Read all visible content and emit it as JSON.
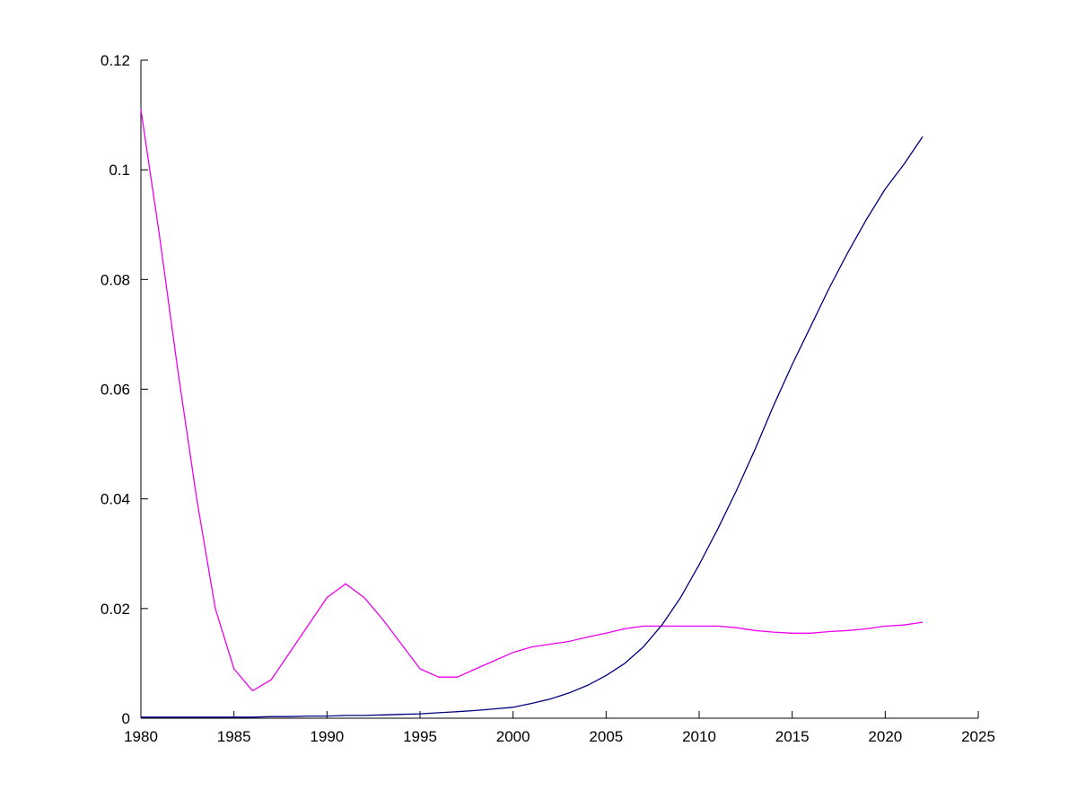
{
  "chart_data": {
    "type": "line",
    "title": "",
    "xlabel": "",
    "ylabel": "",
    "grid": false,
    "legend_position": "none",
    "background_color": "#ffffff",
    "axis_color": "#000000",
    "xlim": [
      1980,
      2025
    ],
    "ylim": [
      0,
      0.12
    ],
    "xticks": [
      1980,
      1985,
      1990,
      1995,
      2000,
      2005,
      2010,
      2015,
      2020,
      2025
    ],
    "xtick_labels": [
      "1980",
      "1985",
      "1990",
      "1995",
      "2000",
      "2005",
      "2010",
      "2015",
      "2020",
      "2025"
    ],
    "yticks": [
      0,
      0.02,
      0.04,
      0.06,
      0.08,
      0.1,
      0.12
    ],
    "ytick_labels": [
      "0",
      "0.02",
      "0.04",
      "0.06",
      "0.08",
      "0.1",
      "0.12"
    ],
    "x": [
      1980,
      1981,
      1982,
      1983,
      1984,
      1985,
      1986,
      1987,
      1988,
      1989,
      1990,
      1991,
      1992,
      1993,
      1994,
      1995,
      1996,
      1997,
      1998,
      1999,
      2000,
      2001,
      2002,
      2003,
      2004,
      2005,
      2006,
      2007,
      2008,
      2009,
      2010,
      2011,
      2012,
      2013,
      2014,
      2015,
      2016,
      2017,
      2018,
      2019,
      2020,
      2021,
      2022
    ],
    "series": [
      {
        "name": "magenta-series",
        "color": "#EE00EE",
        "values": [
          0.111,
          0.088,
          0.063,
          0.04,
          0.02,
          0.009,
          0.005,
          0.007,
          0.012,
          0.017,
          0.022,
          0.0245,
          0.022,
          0.018,
          0.0135,
          0.009,
          0.0075,
          0.0075,
          0.009,
          0.0105,
          0.012,
          0.013,
          0.0135,
          0.014,
          0.0148,
          0.0155,
          0.0163,
          0.0168,
          0.0168,
          0.0168,
          0.0168,
          0.0168,
          0.0165,
          0.016,
          0.0157,
          0.0155,
          0.0155,
          0.0158,
          0.016,
          0.0163,
          0.0168,
          0.017,
          0.0175
        ]
      },
      {
        "name": "blue-series",
        "color": "#000080",
        "values": [
          0.0002,
          0.0002,
          0.0002,
          0.0002,
          0.0002,
          0.0002,
          0.0002,
          0.0003,
          0.0003,
          0.0004,
          0.0004,
          0.0005,
          0.0005,
          0.0006,
          0.0007,
          0.0008,
          0.001,
          0.0012,
          0.0014,
          0.0017,
          0.002,
          0.0027,
          0.0035,
          0.0046,
          0.006,
          0.0078,
          0.01,
          0.013,
          0.017,
          0.022,
          0.028,
          0.0345,
          0.0415,
          0.049,
          0.057,
          0.0645,
          0.0715,
          0.0785,
          0.085,
          0.091,
          0.0965,
          0.101,
          0.106
        ]
      }
    ]
  }
}
